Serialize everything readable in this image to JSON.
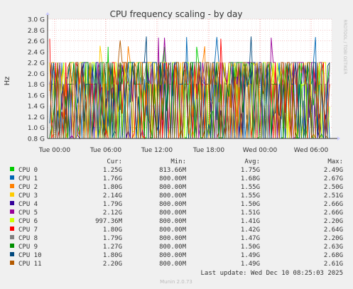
{
  "chart_data": {
    "type": "line",
    "title": "CPU frequency scaling - by day",
    "ylabel": "Hz",
    "side_label": "RRDTOOL / TOBI OETIKER",
    "footer": "Munin 2.0.73",
    "ylim": [
      0.8,
      3.0
    ],
    "y_ticks": [
      {
        "label": "3.0 G",
        "value": 3.0
      },
      {
        "label": "2.8 G",
        "value": 2.8
      },
      {
        "label": "2.6 G",
        "value": 2.6
      },
      {
        "label": "2.4 G",
        "value": 2.4
      },
      {
        "label": "2.2 G",
        "value": 2.2
      },
      {
        "label": "2.0 G",
        "value": 2.0
      },
      {
        "label": "1.8 G",
        "value": 1.8
      },
      {
        "label": "1.6 G",
        "value": 1.6
      },
      {
        "label": "1.4 G",
        "value": 1.4
      },
      {
        "label": "1.2 G",
        "value": 1.2
      },
      {
        "label": "1.0 G",
        "value": 1.0
      },
      {
        "label": "0.8 G",
        "value": 0.8
      }
    ],
    "x_ticks": [
      "Tue 00:00",
      "Tue 06:00",
      "Tue 12:00",
      "Tue 18:00",
      "Wed 00:00",
      "Wed 06:00"
    ],
    "grid": true,
    "legend_position": "bottom",
    "legend_headers": {
      "cur": "Cur:",
      "min": "Min:",
      "avg": "Avg:",
      "max": "Max:"
    },
    "series": [
      {
        "name": "CPU 0",
        "color": "#00CC00",
        "cur": "1.25G",
        "min": "813.66M",
        "avg": "1.75G",
        "max": "2.49G"
      },
      {
        "name": "CPU 1",
        "color": "#0066B3",
        "cur": "1.76G",
        "min": "800.00M",
        "avg": "1.68G",
        "max": "2.67G"
      },
      {
        "name": "CPU 2",
        "color": "#FF8000",
        "cur": "1.80G",
        "min": "800.00M",
        "avg": "1.55G",
        "max": "2.50G"
      },
      {
        "name": "CPU 3",
        "color": "#FFCC00",
        "cur": "2.14G",
        "min": "800.00M",
        "avg": "1.55G",
        "max": "2.51G"
      },
      {
        "name": "CPU 4",
        "color": "#330099",
        "cur": "1.79G",
        "min": "800.00M",
        "avg": "1.50G",
        "max": "2.66G"
      },
      {
        "name": "CPU 5",
        "color": "#990099",
        "cur": "2.12G",
        "min": "800.00M",
        "avg": "1.51G",
        "max": "2.66G"
      },
      {
        "name": "CPU 6",
        "color": "#CCFF00",
        "cur": "997.36M",
        "min": "800.00M",
        "avg": "1.41G",
        "max": "2.20G"
      },
      {
        "name": "CPU 7",
        "color": "#FF0000",
        "cur": "1.80G",
        "min": "800.00M",
        "avg": "1.42G",
        "max": "2.64G"
      },
      {
        "name": "CPU 8",
        "color": "#808080",
        "cur": "1.79G",
        "min": "800.00M",
        "avg": "1.47G",
        "max": "2.20G"
      },
      {
        "name": "CPU 9",
        "color": "#008F00",
        "cur": "1.27G",
        "min": "800.00M",
        "avg": "1.50G",
        "max": "2.63G"
      },
      {
        "name": "CPU 10",
        "color": "#00487D",
        "cur": "1.80G",
        "min": "800.00M",
        "avg": "1.49G",
        "max": "2.68G"
      },
      {
        "name": "CPU 11",
        "color": "#B35A00",
        "cur": "2.20G",
        "min": "800.00M",
        "avg": "1.49G",
        "max": "2.61G"
      }
    ],
    "last_update": "Last update: Wed Dec 10 08:25:03 2025"
  }
}
